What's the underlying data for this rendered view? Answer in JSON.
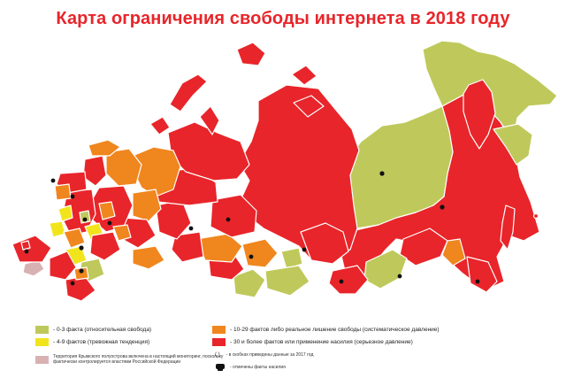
{
  "title": "Карта ограничения свободы интернета в 2018 году",
  "colors": {
    "free": "#bfc95b",
    "warning": "#f2e41c",
    "partial": "#f0861e",
    "serious": "#e8252a",
    "crimea": "#d8b2b2",
    "title": "#e8252a",
    "region_border": "#ffffff",
    "marker": "#111111"
  },
  "legend": {
    "free": "- 0-3 факта (относительная свобода)",
    "warning": "- 4-9 фактов (тревожная тенденция)",
    "partial": "- 10-29 фактов либо реальное лишение свободы (систематическое давление)",
    "serious": "- 30 и более фактов или применение насилия (серьезное давление)",
    "crimea": "Территория Крымского полуострова включена в настоящий мониторинг, поскольку фактически контролируется властями Российской Федерации",
    "parentheses_symbol": "( )",
    "parentheses": "- в скобках приведены данные за 2017 год",
    "violence": "- отмечены факты насилия"
  }
}
